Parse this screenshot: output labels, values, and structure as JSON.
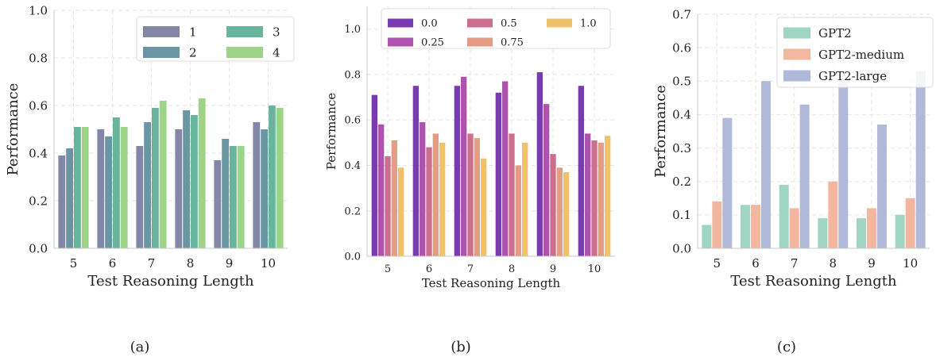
{
  "figure": {
    "panel_labels": [
      "(a)",
      "(b)",
      "(c)"
    ]
  },
  "chart_data": [
    {
      "type": "bar",
      "categories": [
        "5",
        "6",
        "7",
        "8",
        "9",
        "10"
      ],
      "xlabel": "Test Reasoning Length",
      "ylabel": "Performance",
      "ylim": [
        0,
        1.0
      ],
      "yticks": [
        "0.0",
        "0.2",
        "0.4",
        "0.6",
        "0.8",
        "1.0"
      ],
      "grid": true,
      "legend": {
        "placement": "top-right",
        "columns": 2
      },
      "series": [
        {
          "name": "1",
          "color": "#8287a8",
          "values": [
            0.39,
            0.5,
            0.43,
            0.5,
            0.37,
            0.53
          ]
        },
        {
          "name": "2",
          "color": "#6a96a4",
          "values": [
            0.42,
            0.47,
            0.53,
            0.58,
            0.46,
            0.5
          ]
        },
        {
          "name": "3",
          "color": "#68b49c",
          "values": [
            0.51,
            0.55,
            0.59,
            0.56,
            0.43,
            0.6
          ]
        },
        {
          "name": "4",
          "color": "#9ed488",
          "values": [
            0.51,
            0.51,
            0.62,
            0.63,
            0.43,
            0.59
          ]
        }
      ]
    },
    {
      "type": "bar",
      "categories": [
        "5",
        "6",
        "7",
        "8",
        "9",
        "10"
      ],
      "xlabel": "Test Reasoning Length",
      "ylabel": "Performance",
      "ylim": [
        0,
        1.1
      ],
      "yticks": [
        "0.0",
        "0.2",
        "0.4",
        "0.6",
        "0.8",
        "1.0"
      ],
      "grid": true,
      "legend": {
        "placement": "top",
        "columns": 3
      },
      "series": [
        {
          "name": "0.0",
          "color": "#7b3bb0",
          "values": [
            0.71,
            0.75,
            0.75,
            0.72,
            0.81,
            0.75
          ]
        },
        {
          "name": "0.25",
          "color": "#ad52ad",
          "values": [
            0.58,
            0.59,
            0.79,
            0.77,
            0.67,
            0.54
          ]
        },
        {
          "name": "0.5",
          "color": "#cc6f8e",
          "values": [
            0.44,
            0.48,
            0.54,
            0.54,
            0.45,
            0.51
          ]
        },
        {
          "name": "0.75",
          "color": "#e39d85",
          "values": [
            0.51,
            0.54,
            0.52,
            0.4,
            0.39,
            0.5
          ]
        },
        {
          "name": "1.0",
          "color": "#eec16b",
          "values": [
            0.39,
            0.5,
            0.43,
            0.5,
            0.37,
            0.53
          ]
        }
      ]
    },
    {
      "type": "bar",
      "categories": [
        "5",
        "6",
        "7",
        "8",
        "9",
        "10"
      ],
      "xlabel": "Test Reasoning Length",
      "ylabel": "Performance",
      "ylim": [
        0,
        0.7
      ],
      "yticks": [
        "0.0",
        "0.1",
        "0.2",
        "0.3",
        "0.4",
        "0.5",
        "0.6",
        "0.7"
      ],
      "grid": true,
      "legend": {
        "placement": "top-right",
        "columns": 1
      },
      "series": [
        {
          "name": "GPT2",
          "color": "#9fd5c2",
          "values": [
            0.07,
            0.13,
            0.19,
            0.09,
            0.09,
            0.1
          ]
        },
        {
          "name": "GPT2-medium",
          "color": "#f3b7a0",
          "values": [
            0.14,
            0.13,
            0.12,
            0.2,
            0.12,
            0.15
          ]
        },
        {
          "name": "GPT2-large",
          "color": "#b1b9d8",
          "values": [
            0.39,
            0.5,
            0.43,
            0.5,
            0.37,
            0.53
          ]
        }
      ]
    }
  ]
}
